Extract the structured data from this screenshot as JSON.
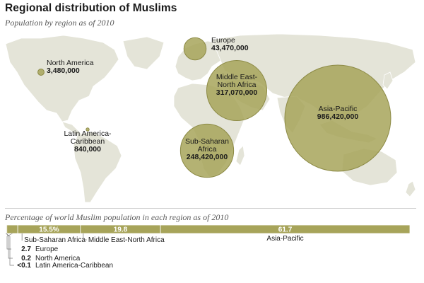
{
  "title": "Regional distribution of Muslims",
  "subtitle": "Population by region as of 2010",
  "colors": {
    "land": "#e4e4d8",
    "land_stroke": "#ffffff",
    "bubble_fill": "#a7a45a",
    "bubble_stroke": "#8c8a45",
    "bar": "#a7a45a",
    "leader": "#7b7b7b"
  },
  "map": {
    "regions": [
      {
        "name": "North America",
        "lines": [
          "North America"
        ],
        "value": 3480000,
        "value_label": "3,480,000"
      },
      {
        "name": "Europe",
        "lines": [
          "Europe"
        ],
        "value": 43470000,
        "value_label": "43,470,000"
      },
      {
        "name": "Middle East-North Africa",
        "lines": [
          "Middle East-",
          "North Africa"
        ],
        "value": 317070000,
        "value_label": "317,070,000"
      },
      {
        "name": "Asia-Pacific",
        "lines": [
          "Asia-Pacific"
        ],
        "value": 986420000,
        "value_label": "986,420,000"
      },
      {
        "name": "Latin America-Caribbean",
        "lines": [
          "Latin America-",
          "Caribbean"
        ],
        "value": 840000,
        "value_label": "840,000"
      },
      {
        "name": "Sub-Saharan Africa",
        "lines": [
          "Sub-Saharan",
          "Africa"
        ],
        "value": 248420000,
        "value_label": "248,420,000"
      }
    ]
  },
  "percentage": {
    "title": "Percentage of world Muslim population in each region as of 2010",
    "segments": [
      {
        "name": "Latin America-Caribbean",
        "value": 0.1,
        "label": "<0.1",
        "legend": "Latin America-Caribbean"
      },
      {
        "name": "North America",
        "value": 0.2,
        "label": "0.2",
        "legend": "North America"
      },
      {
        "name": "Europe",
        "value": 2.7,
        "label": "2.7",
        "legend": "Europe"
      },
      {
        "name": "Sub-Saharan Africa",
        "value": 15.5,
        "label": "15.5%",
        "legend": "Sub-Saharan Africa"
      },
      {
        "name": "Middle East-North Africa",
        "value": 19.8,
        "label": "19.8",
        "legend": "Middle East-North Africa"
      },
      {
        "name": "Asia-Pacific",
        "value": 61.7,
        "label": "61.7",
        "legend": "Asia-Pacific"
      }
    ]
  }
}
